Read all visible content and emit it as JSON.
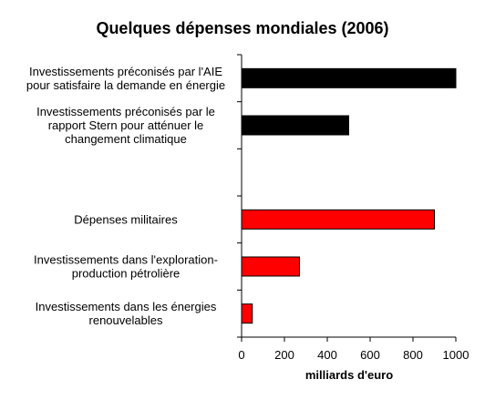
{
  "chart_data": {
    "type": "bar",
    "orientation": "horizontal",
    "title": "Quelques dépenses mondiales (2006)",
    "xlabel": "milliards d'euro",
    "ylabel": "",
    "xlim": [
      0,
      1000
    ],
    "x_ticks": [
      0,
      200,
      400,
      600,
      800,
      1000
    ],
    "grid": false,
    "legend": false,
    "categories": [
      {
        "lines": [
          "Investissements préconisés par l'AIE",
          "pour satisfaire la demande en énergie"
        ],
        "value": 1000,
        "color": "#000000"
      },
      {
        "lines": [
          "Investissements préconisés par le",
          "rapport Stern pour atténuer le",
          "changement climatique"
        ],
        "value": 500,
        "color": "#000000"
      },
      {
        "lines": [],
        "value": null,
        "color": ""
      },
      {
        "lines": [
          "Dépenses militaires"
        ],
        "value": 900,
        "color": "#ff0000"
      },
      {
        "lines": [
          "Investissements dans l'exploration-",
          "production pétrolière"
        ],
        "value": 270,
        "color": "#ff0000"
      },
      {
        "lines": [
          "Investissements dans les énergies",
          "renouvelables"
        ],
        "value": 50,
        "color": "#ff0000"
      }
    ]
  }
}
